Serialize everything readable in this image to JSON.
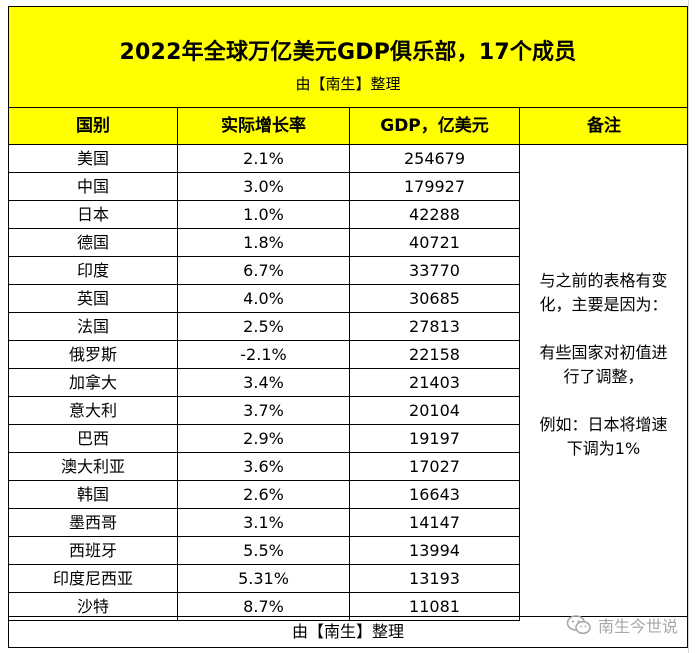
{
  "title": "2022年全球万亿美元GDP俱乐部，17个成员",
  "subtitle": "由【南生】整理",
  "headers": [
    "国别",
    "实际增长率",
    "GDP，亿美元",
    "备注"
  ],
  "rows": [
    {
      "country": "美国",
      "growth": "2.1%",
      "gdp": "254679"
    },
    {
      "country": "中国",
      "growth": "3.0%",
      "gdp": "179927"
    },
    {
      "country": "日本",
      "growth": "1.0%",
      "gdp": "42288"
    },
    {
      "country": "德国",
      "growth": "1.8%",
      "gdp": "40721"
    },
    {
      "country": "印度",
      "growth": "6.7%",
      "gdp": "33770"
    },
    {
      "country": "英国",
      "growth": "4.0%",
      "gdp": "30685"
    },
    {
      "country": "法国",
      "growth": "2.5%",
      "gdp": "27813"
    },
    {
      "country": "俄罗斯",
      "growth": "-2.1%",
      "gdp": "22158"
    },
    {
      "country": "加拿大",
      "growth": "3.4%",
      "gdp": "21403"
    },
    {
      "country": "意大利",
      "growth": "3.7%",
      "gdp": "20104"
    },
    {
      "country": "巴西",
      "growth": "2.9%",
      "gdp": "19197"
    },
    {
      "country": "澳大利亚",
      "growth": "3.6%",
      "gdp": "17027"
    },
    {
      "country": "韩国",
      "growth": "2.6%",
      "gdp": "16643"
    },
    {
      "country": "墨西哥",
      "growth": "3.1%",
      "gdp": "14147"
    },
    {
      "country": "西班牙",
      "growth": "5.5%",
      "gdp": "13994"
    },
    {
      "country": "印度尼西亚",
      "growth": "5.31%",
      "gdp": "13193"
    },
    {
      "country": "沙特",
      "growth": "8.7%",
      "gdp": "11081"
    }
  ],
  "note": {
    "para1": [
      "与之前的表格有变",
      "化，主要是因为："
    ],
    "para2": [
      "有些国家对初值进",
      "行了调整，"
    ],
    "para3": [
      "例如：日本将增速",
      "下调为1%"
    ]
  },
  "footer": "由【南生】整理",
  "watermark": "南生今世说",
  "colors": {
    "header_bg": "#ffff00",
    "border": "#000000",
    "watermark": "#a8a8a8"
  }
}
